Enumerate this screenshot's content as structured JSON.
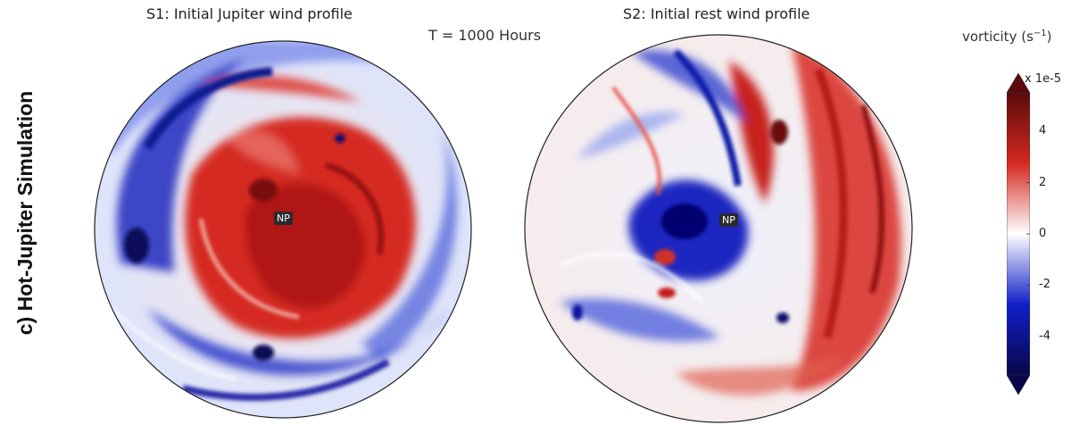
{
  "side_label": "c) Hot-Jupiter Simulation",
  "panels": [
    {
      "title": "S1: Initial Jupiter wind profile",
      "marker": "NP"
    },
    {
      "title": "S2: Initial rest wind profile",
      "marker": "NP"
    }
  ],
  "time_label": "T = 1000 Hours",
  "colorbar": {
    "label": "vorticity",
    "unit": "(s",
    "unit_exp": "−1",
    "unit_close": ")",
    "multiplier": "x 1e-5",
    "ticks": [
      "4",
      "2",
      "0",
      "-2",
      "-4"
    ],
    "range": [
      -5.5,
      5.5
    ],
    "colormap": [
      "#08064a",
      "#1020c8",
      "#ffffff",
      "#d42a20",
      "#5a0a0a"
    ]
  }
}
